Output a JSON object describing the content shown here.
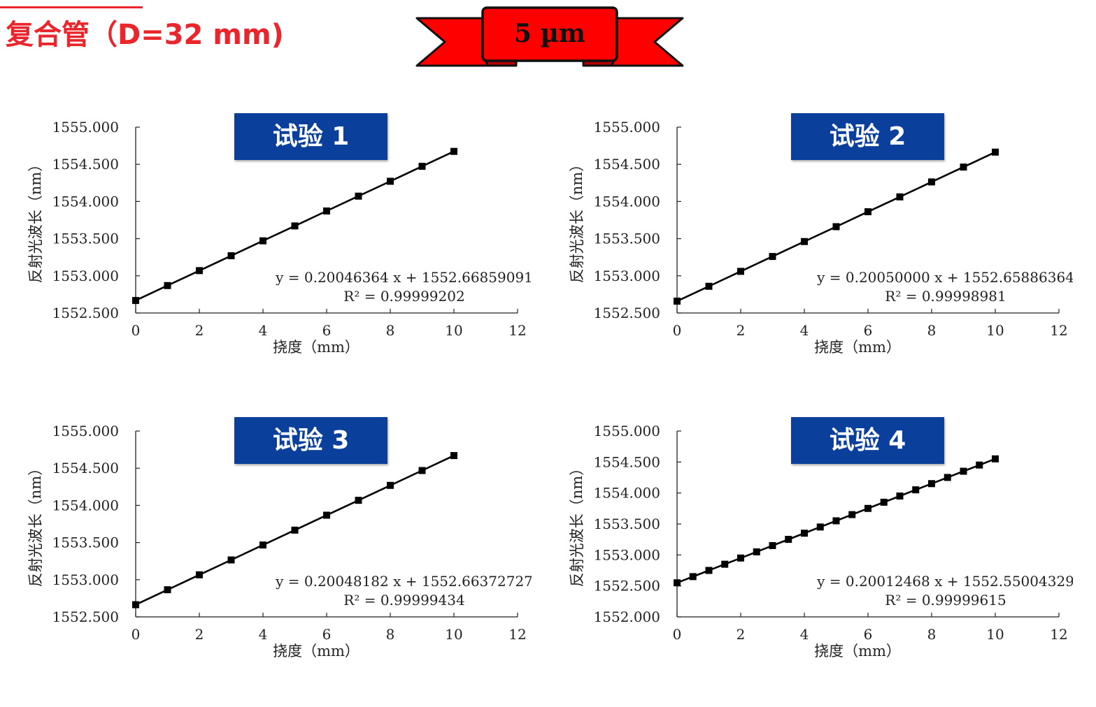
{
  "header": {
    "title": "复合管（D=32 mm)",
    "banner": "5 µm",
    "title_color": "#e8262c",
    "banner_color": "#ff0000",
    "label_bg": "#0a3f9c"
  },
  "chart_data": [
    {
      "type": "line",
      "title": "试验 1",
      "xlabel": "挠度（mm）",
      "ylabel": "反射光波长（nm）",
      "xlim": [
        0,
        12
      ],
      "ylim": [
        1552.5,
        1555.0
      ],
      "xticks": [
        "0",
        "2",
        "4",
        "6",
        "8",
        "10",
        "12"
      ],
      "yticks": [
        "1552.500",
        "1553.000",
        "1553.500",
        "1554.000",
        "1554.500",
        "1555.000"
      ],
      "x": [
        0,
        1,
        2,
        3,
        4,
        5,
        6,
        7,
        8,
        9,
        10
      ],
      "series": [
        {
          "values": [
            1552.668,
            1552.869,
            1553.07,
            1553.27,
            1553.471,
            1553.671,
            1553.872,
            1554.072,
            1554.272,
            1554.473,
            1554.674
          ]
        }
      ],
      "equation": "y = 0.20046364 x + 1552.66859091",
      "r2": "R² = 0.99999202"
    },
    {
      "type": "line",
      "title": "试验 2",
      "xlabel": "挠度（mm）",
      "ylabel": "反射光波长（nm）",
      "xlim": [
        0,
        12
      ],
      "ylim": [
        1552.5,
        1555.0
      ],
      "xticks": [
        "0",
        "2",
        "4",
        "6",
        "8",
        "10",
        "12"
      ],
      "yticks": [
        "1552.500",
        "1553.000",
        "1553.500",
        "1554.000",
        "1554.500",
        "1555.000"
      ],
      "x": [
        0,
        1,
        2,
        3,
        4,
        5,
        6,
        7,
        8,
        9,
        10
      ],
      "series": [
        {
          "values": [
            1552.659,
            1552.859,
            1553.06,
            1553.26,
            1553.461,
            1553.661,
            1553.862,
            1554.062,
            1554.263,
            1554.463,
            1554.664
          ]
        }
      ],
      "equation": "y = 0.20050000 x + 1552.65886364",
      "r2": "R² = 0.99998981"
    },
    {
      "type": "line",
      "title": "试验 3",
      "xlabel": "挠度（mm）",
      "ylabel": "反射光波长（nm）",
      "xlim": [
        0,
        12
      ],
      "ylim": [
        1552.5,
        1555.0
      ],
      "xticks": [
        "0",
        "2",
        "4",
        "6",
        "8",
        "10",
        "12"
      ],
      "yticks": [
        "1552.500",
        "1553.000",
        "1553.500",
        "1554.000",
        "1554.500",
        "1555.000"
      ],
      "x": [
        0,
        1,
        2,
        3,
        4,
        5,
        6,
        7,
        8,
        9,
        10
      ],
      "series": [
        {
          "values": [
            1552.664,
            1552.865,
            1553.066,
            1553.266,
            1553.467,
            1553.667,
            1553.868,
            1554.068,
            1554.269,
            1554.469,
            1554.67
          ]
        }
      ],
      "equation": "y = 0.20048182 x + 1552.66372727",
      "r2": "R² = 0.99999434"
    },
    {
      "type": "line",
      "title": "试验 4",
      "xlabel": "挠度（mm）",
      "ylabel": "反射光波长（nm）",
      "xlim": [
        0,
        12
      ],
      "ylim": [
        1552.0,
        1555.0
      ],
      "xticks": [
        "0",
        "2",
        "4",
        "6",
        "8",
        "10",
        "12"
      ],
      "yticks": [
        "1552.000",
        "1552.500",
        "1553.000",
        "1553.500",
        "1554.000",
        "1554.500",
        "1555.000"
      ],
      "x": [
        0,
        0.5,
        1,
        1.5,
        2,
        2.5,
        3,
        3.5,
        4,
        4.5,
        5,
        5.5,
        6,
        6.5,
        7,
        7.5,
        8,
        8.5,
        9,
        9.5,
        10
      ],
      "series": [
        {
          "values": [
            1552.55,
            1552.65,
            1552.75,
            1552.85,
            1552.95,
            1553.05,
            1553.151,
            1553.251,
            1553.351,
            1553.451,
            1553.551,
            1553.651,
            1553.751,
            1553.851,
            1553.951,
            1554.051,
            1554.151,
            1554.251,
            1554.351,
            1554.451,
            1554.551
          ]
        }
      ],
      "equation": "y = 0.20012468 x + 1552.55004329",
      "r2": "R² = 0.99999615"
    }
  ]
}
